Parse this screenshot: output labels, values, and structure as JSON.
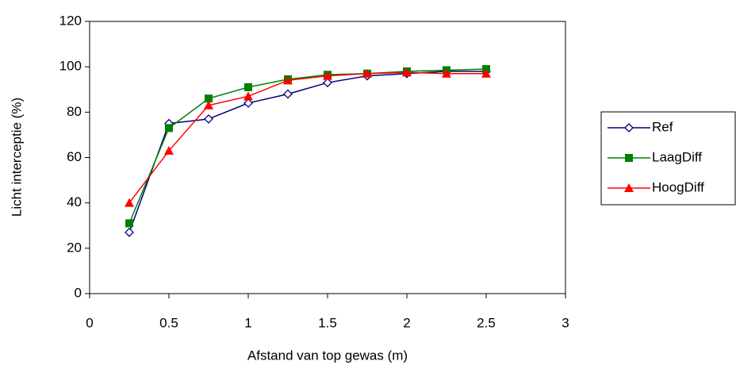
{
  "chart_data": {
    "type": "line",
    "x_label": "Afstand van top gewas (m)",
    "y_label": "Licht interceptie (%)",
    "x": [
      0.25,
      0.5,
      0.75,
      1,
      1.25,
      1.5,
      1.75,
      2,
      2.25,
      2.5
    ],
    "xlim": [
      0,
      3
    ],
    "xticks": [
      0,
      0.5,
      1,
      1.5,
      2,
      2.5,
      3
    ],
    "ylim": [
      0,
      120
    ],
    "yticks": [
      0,
      20,
      40,
      60,
      80,
      100,
      120
    ],
    "grid": false,
    "legend": "right",
    "series": [
      {
        "name": "Ref",
        "color": "#000080",
        "marker": "diamond-open",
        "values": [
          27,
          75,
          77,
          84,
          88,
          93,
          96,
          97,
          98,
          98
        ]
      },
      {
        "name": "LaagDiff",
        "color": "#008000",
        "marker": "square",
        "values": [
          31,
          73,
          86,
          91,
          94.5,
          96.5,
          97,
          98,
          98.5,
          99
        ]
      },
      {
        "name": "HoogDiff",
        "color": "#ff0000",
        "marker": "triangle",
        "values": [
          40,
          63,
          83,
          87,
          94,
          96,
          97,
          97.5,
          97,
          97
        ]
      }
    ]
  }
}
